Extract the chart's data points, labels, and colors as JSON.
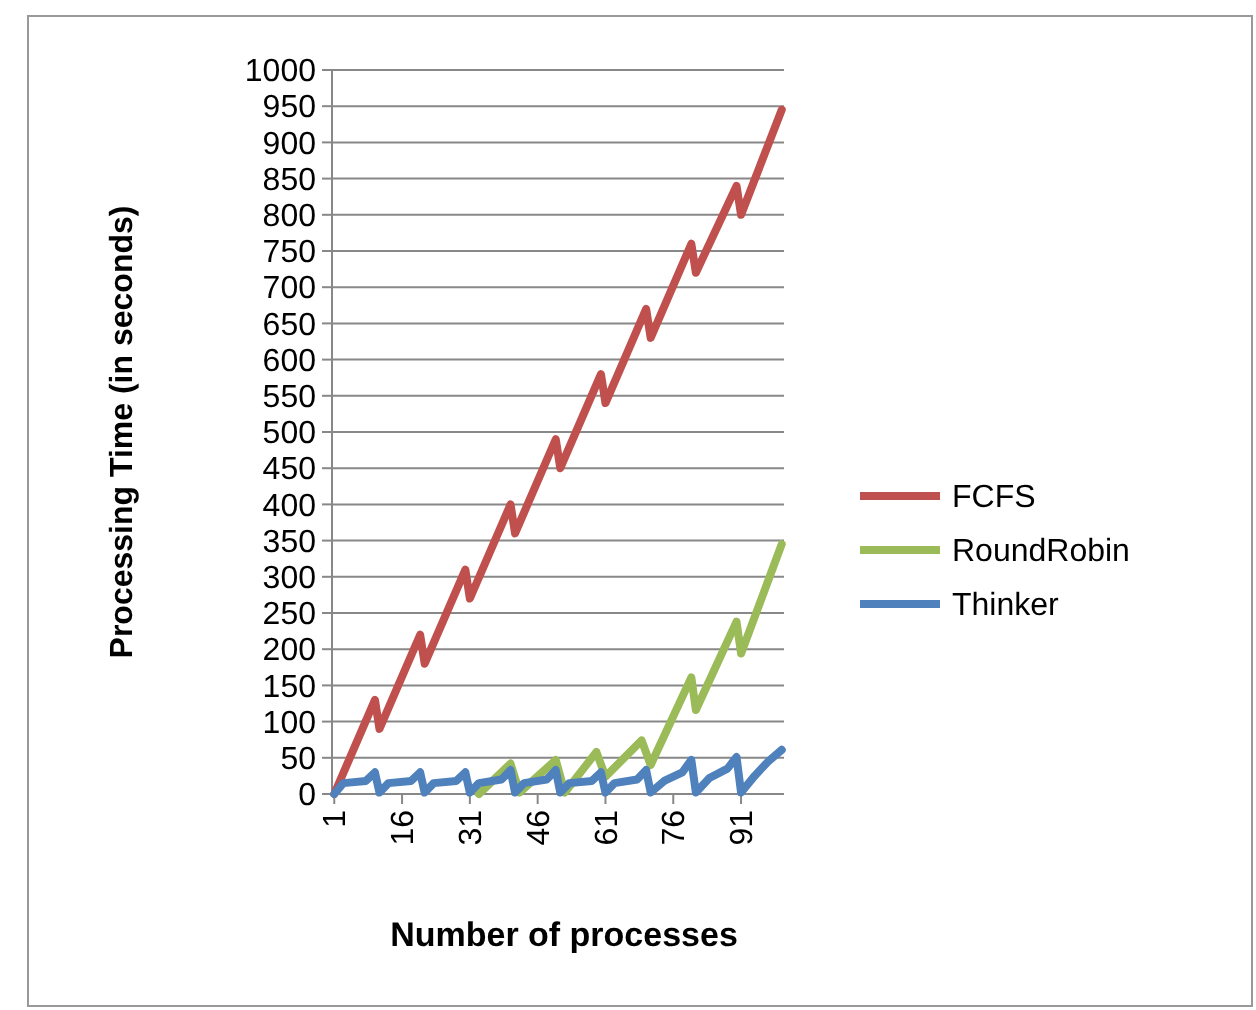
{
  "chart_data": {
    "type": "line",
    "xlabel": "Number of processes",
    "ylabel": "Processing Time (in seconds)",
    "xlim": [
      0.5,
      100.5
    ],
    "xticks": [
      1,
      16,
      31,
      46,
      61,
      76,
      91
    ],
    "ylim": [
      0,
      1000
    ],
    "yticks": [
      0,
      50,
      100,
      150,
      200,
      250,
      300,
      350,
      400,
      450,
      500,
      550,
      600,
      650,
      700,
      750,
      800,
      850,
      900,
      950,
      1000
    ],
    "grid": "y",
    "legend": "right",
    "marker": "none",
    "line_style": "solid",
    "series": [
      {
        "name": "FCFS",
        "color": "#c0504d",
        "x": [
          1,
          10,
          11,
          20,
          21,
          30,
          31,
          40,
          41,
          50,
          51,
          60,
          61,
          70,
          71,
          80,
          81,
          90,
          91,
          100
        ],
        "values": [
          0,
          130,
          90,
          220,
          180,
          310,
          270,
          400,
          360,
          490,
          450,
          580,
          540,
          670,
          630,
          760,
          720,
          840,
          800,
          945
        ]
      },
      {
        "name": "RoundRobin",
        "color": "#9bbb59",
        "x": [
          33,
          40,
          42,
          50,
          52,
          59,
          61,
          69,
          71,
          80,
          81,
          90,
          91,
          100
        ],
        "values": [
          0,
          42,
          2,
          47,
          2,
          58,
          24,
          74,
          40,
          161,
          116,
          238,
          194,
          345
        ]
      },
      {
        "name": "Thinker",
        "color": "#4f81bd",
        "x": [
          1,
          3,
          8,
          10,
          11,
          13,
          18,
          20,
          21,
          23,
          28,
          30,
          31,
          33,
          38,
          40,
          41,
          43,
          48,
          50,
          51,
          53,
          58,
          60,
          61,
          63,
          68,
          70,
          71,
          74,
          78,
          80,
          81,
          84,
          88,
          90,
          91,
          94,
          97,
          100
        ],
        "values": [
          0,
          15,
          18,
          30,
          2,
          15,
          18,
          30,
          2,
          15,
          18,
          30,
          2,
          15,
          20,
          33,
          2,
          15,
          20,
          33,
          2,
          15,
          18,
          30,
          2,
          15,
          20,
          33,
          2,
          18,
          30,
          47,
          2,
          22,
          35,
          51,
          2,
          25,
          45,
          61
        ]
      }
    ]
  }
}
